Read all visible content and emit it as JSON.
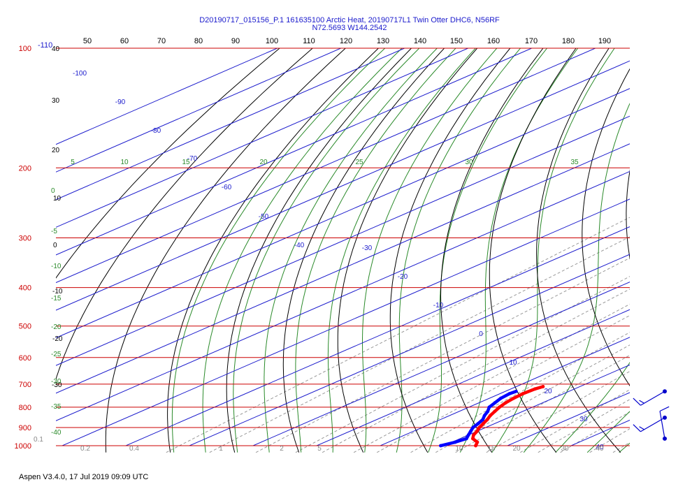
{
  "title_lines": [
    "D20190717_015156_P.1 161635100 Arctic Heat, 20190717L1 Twin Otter DHC6, N56RF",
    "N72.5693 W144.2542"
  ],
  "footer": "Aspen V3.4.0, 17 Jul 2019  09:09 UTC",
  "colors": {
    "isobar": "#cc0000",
    "isotherm": "#1a1acc",
    "dry_adiabat": "#000000",
    "moist_adiabat": "#2a8a2a",
    "mixing_ratio": "#999999",
    "temperature": "#ff0000",
    "dewpoint": "#0000ff",
    "wind_barb": "#0000cc"
  },
  "chart_data": {
    "type": "line",
    "subtype": "skew-t log-p",
    "y_axis": {
      "label": "",
      "ticks": [
        100,
        200,
        300,
        400,
        500,
        600,
        700,
        800,
        900,
        1000
      ],
      "scale": "log",
      "range": [
        100,
        1000
      ]
    },
    "top_axis": {
      "label": "",
      "ticks": [
        -110,
        50,
        60,
        70,
        80,
        90,
        100,
        110,
        120,
        130,
        140,
        150,
        160,
        170,
        180,
        190
      ]
    },
    "isotherm_labels": [
      -100,
      -90,
      -80,
      -70,
      -60,
      -50,
      -40,
      -30,
      -20,
      -10,
      0,
      10,
      20,
      30,
      40
    ],
    "dry_adiabat_labels": [
      40,
      30,
      20,
      10,
      0,
      -10,
      -20,
      -30
    ],
    "moist_adiabat_labels_top": [
      5,
      10,
      15,
      20,
      25,
      30,
      35
    ],
    "moist_adiabat_labels_left": [
      0,
      -5,
      -10,
      -15,
      -20,
      -25,
      -30,
      -35,
      -40
    ],
    "mixing_ratio_labels": [
      "0.1",
      "0.2",
      "0.4",
      "1",
      "2",
      "5",
      "10",
      "15",
      "20",
      "30",
      "40"
    ],
    "grid": true,
    "series": [
      {
        "color": "#ff0000",
        "points": [
          {
            "p": 1000,
            "t": 5.0
          },
          {
            "p": 980,
            "t": 4.0
          },
          {
            "p": 960,
            "t": 2.0
          },
          {
            "p": 940,
            "t": 0.8
          },
          {
            "p": 920,
            "t": 0.0
          },
          {
            "p": 900,
            "t": -1.0
          },
          {
            "p": 880,
            "t": -1.8
          },
          {
            "p": 860,
            "t": -2.6
          },
          {
            "p": 840,
            "t": -3.6
          },
          {
            "p": 820,
            "t": -4.4
          },
          {
            "p": 800,
            "t": -5.2
          },
          {
            "p": 780,
            "t": -5.8
          },
          {
            "p": 760,
            "t": -6.2
          },
          {
            "p": 740,
            "t": -6.4
          },
          {
            "p": 720,
            "t": -6.2
          },
          {
            "p": 710,
            "t": -5.8
          }
        ]
      },
      {
        "color": "#0000ff",
        "points": [
          {
            "p": 1000,
            "t": -0.5
          },
          {
            "p": 980,
            "t": 0.5
          },
          {
            "p": 960,
            "t": 1.0
          },
          {
            "p": 940,
            "t": 0.0
          },
          {
            "p": 920,
            "t": -1.0
          },
          {
            "p": 900,
            "t": -2.0
          },
          {
            "p": 880,
            "t": -2.6
          },
          {
            "p": 860,
            "t": -3.3
          },
          {
            "p": 840,
            "t": -4.5
          },
          {
            "p": 820,
            "t": -5.5
          },
          {
            "p": 800,
            "t": -6.8
          },
          {
            "p": 780,
            "t": -7.5
          },
          {
            "p": 760,
            "t": -8.2
          },
          {
            "p": 740,
            "t": -8.5
          },
          {
            "p": 730,
            "t": -8.3
          }
        ]
      }
    ],
    "wind_barbs": [
      {
        "p": 730,
        "speed_kt": 15,
        "direction_deg": 240
      },
      {
        "p": 850,
        "speed_kt": 15,
        "direction_deg": 240
      },
      {
        "p": 960,
        "speed_kt": 10,
        "direction_deg": 350
      }
    ]
  }
}
